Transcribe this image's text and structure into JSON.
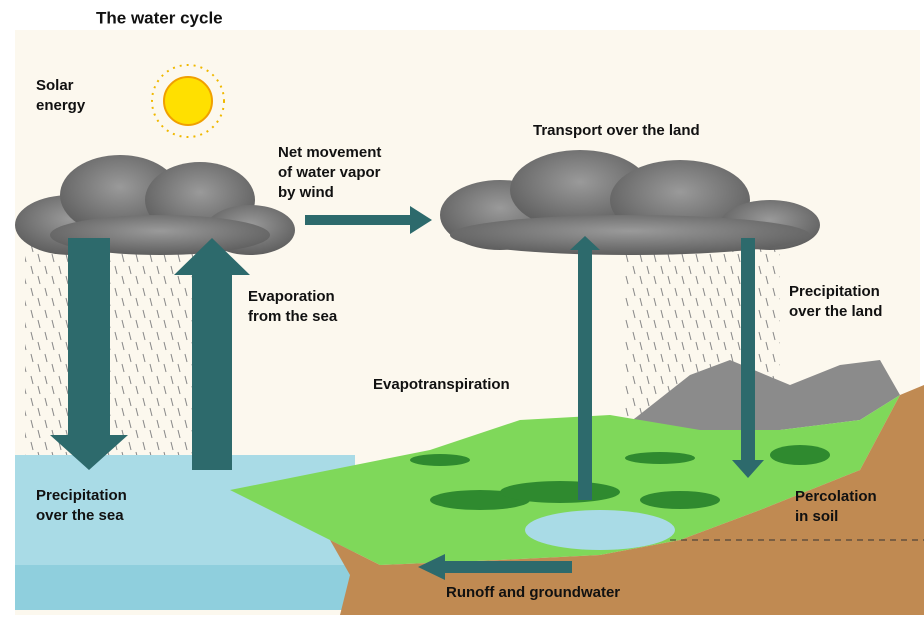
{
  "title": "The water cycle",
  "labels": [
    {
      "lines": [
        "Solar",
        "energy"
      ]
    },
    {
      "lines": [
        "Net movement",
        "of water vapor",
        "by wind"
      ]
    },
    {
      "lines": [
        "Transport over the land"
      ]
    },
    {
      "lines": [
        "Evaporation",
        "from the sea"
      ]
    },
    {
      "lines": [
        "Precipitation",
        "over the land"
      ]
    },
    {
      "lines": [
        "Evapotranspiration"
      ]
    },
    {
      "lines": [
        "Precipitation",
        "over the sea"
      ]
    },
    {
      "lines": [
        "Percolation",
        "in soil"
      ]
    },
    {
      "lines": [
        "Runoff and groundwater"
      ]
    }
  ]
}
